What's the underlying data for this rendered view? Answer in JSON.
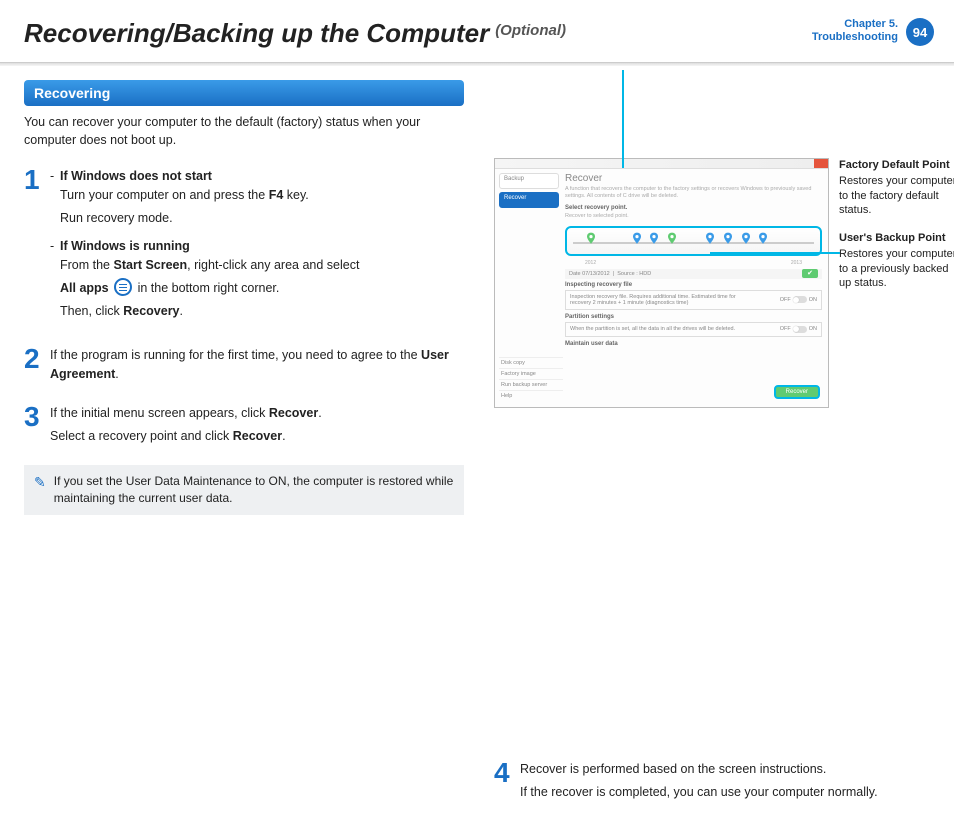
{
  "header": {
    "title_main": "Recovering/Backing up the Computer",
    "title_sub": "(Optional)",
    "chapter_line1": "Chapter 5.",
    "chapter_line2": "Troubleshooting",
    "page_number": "94"
  },
  "section": {
    "pill": "Recovering",
    "intro": "You can recover your computer to the default (factory) status when your computer does not boot up."
  },
  "step1": {
    "a_head": "If Windows does not start",
    "a_l1_pre": "Turn your computer on and press the ",
    "a_l1_key": "F4",
    "a_l1_post": " key.",
    "a_l2": "Run recovery mode.",
    "b_head": "If Windows is running",
    "b_l1_pre": "From the ",
    "b_l1_b1": "Start Screen",
    "b_l1_mid": ", right-click any area and select ",
    "b_l2_b": "All apps",
    "b_l2_post": " in the bottom right corner.",
    "b_l3_pre": "Then, click ",
    "b_l3_b": "Recovery",
    "b_l3_post": "."
  },
  "step2": {
    "pre": "If the program is running for the first time, you need to agree to the ",
    "b": "User Agreement",
    "post": "."
  },
  "step3": {
    "l1_pre": "If the initial menu screen appears, click ",
    "l1_b": "Recover",
    "l1_post": ".",
    "l2_pre": "Select a recovery point and click ",
    "l2_b": "Recover",
    "l2_post": "."
  },
  "note": "If you set the User Data Maintenance to ON, the computer is restored while maintaining the current user data.",
  "step4": {
    "l1": "Recover is performed based on the screen instructions.",
    "l2": "If the recover is completed, you can use your computer normally."
  },
  "shot": {
    "side_backup": "Backup",
    "side_recover": "Recover",
    "title": "Recover",
    "desc": "A function that recovers the computer to the factory settings or recovers Windows to previously saved settings. All contents of C drive will be deleted.",
    "select_label": "Select recovery point.",
    "select_sub": "Recover to selected point.",
    "year_a": "2012",
    "year_b": "2013",
    "date_label": "Date",
    "date_val": "07/13/2012",
    "source_label": "Source :",
    "source_val": "HDD",
    "insp_label": "Inspecting recovery file",
    "insp_desc": "Inspection recovery file. Requires additional time. Estimated time for recovery 2 minutes + 1 minute (diagnostics time)",
    "part_label": "Partition settings",
    "part_desc": "When the partition is set, all the data in all the drives will be deleted.",
    "maint_label": "Maintain user data",
    "off": "OFF",
    "on": "ON",
    "btn": "Recover",
    "bl1": "Disk copy",
    "bl2": "Factory image",
    "bl3": "Run backup server",
    "bl4": "Help"
  },
  "annotations": {
    "a_title": "Factory Default Point",
    "a_body": "Restores your computer to the factory default status.",
    "b_title": "User's Backup Point",
    "b_body": "Restores your computer to a previously backed up status."
  },
  "style": {
    "accent": "#1a6fc4",
    "cyan": "#00b7e6",
    "green": "#5fcb71",
    "pin_colors": [
      "#5fcb71",
      "#3a9be8",
      "#3a9be8",
      "#5fcb71",
      "#3a9be8",
      "#3a9be8",
      "#3a9be8",
      "#3a9be8"
    ],
    "pin_positions_pct": [
      8,
      26,
      33,
      40,
      55,
      62,
      69,
      76
    ]
  }
}
